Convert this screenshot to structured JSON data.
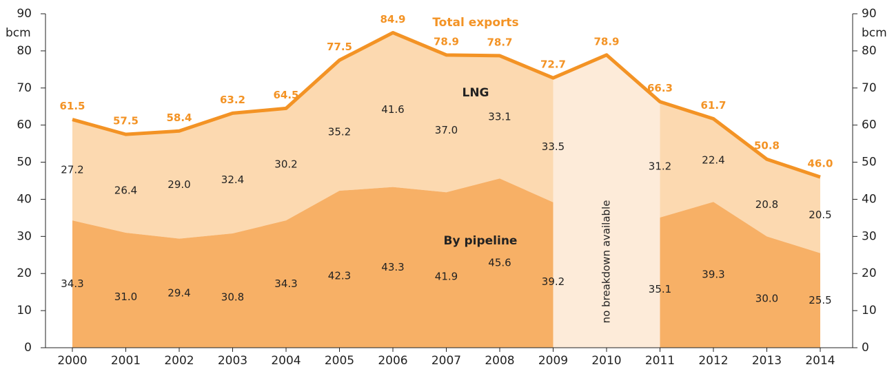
{
  "chart_data": {
    "type": "stacked_area",
    "ylabel": "bcm",
    "y2label": "bcm",
    "categories": [
      "2000",
      "2001",
      "2002",
      "2003",
      "2004",
      "2005",
      "2006",
      "2007",
      "2008",
      "2009",
      "2010",
      "2011",
      "2012",
      "2013",
      "2014"
    ],
    "series": [
      {
        "name": "By pipeline",
        "color": "#f7b066",
        "values": [
          34.3,
          31.0,
          29.4,
          30.8,
          34.3,
          42.3,
          43.3,
          41.9,
          45.6,
          39.2,
          null,
          35.1,
          39.3,
          30.0,
          25.5
        ],
        "value_labels": [
          "34.3",
          "31.0",
          "29.4",
          "30.8",
          "34.3",
          "42.3",
          "43.3",
          "41.9",
          "45.6",
          "39.2",
          null,
          "35.1",
          "39.3",
          "30.0",
          "25.5"
        ]
      },
      {
        "name": "LNG",
        "color": "#fcd9b0",
        "values": [
          27.2,
          26.4,
          29.0,
          32.4,
          30.2,
          35.2,
          41.6,
          37.0,
          33.1,
          33.5,
          null,
          31.2,
          22.4,
          20.8,
          20.5
        ],
        "value_labels": [
          "27.2",
          "26.4",
          "29.0",
          "32.4",
          "30.2",
          "35.2",
          "41.6",
          "37.0",
          "33.1",
          "33.5",
          null,
          "31.2",
          "22.4",
          "20.8",
          "20.5"
        ]
      },
      {
        "name": "Total exports",
        "color": "#f39325",
        "kind": "line",
        "values": [
          61.5,
          57.5,
          58.4,
          63.2,
          64.5,
          77.5,
          84.9,
          78.9,
          78.7,
          72.7,
          78.9,
          66.3,
          61.7,
          50.8,
          46.0
        ],
        "value_labels": [
          "61.5",
          "57.5",
          "58.4",
          "63.2",
          "64.5",
          "77.5",
          "84.9",
          "78.9",
          "78.7",
          "72.7",
          "78.9",
          "66.3",
          "61.7",
          "50.8",
          "46.0"
        ]
      }
    ],
    "annotation": "no breakdown available",
    "gap_color": "#fdebd9",
    "ylim": [
      0,
      90
    ],
    "yticks": [
      0,
      10,
      20,
      30,
      40,
      50,
      60,
      70,
      80,
      90
    ],
    "y2lim": [
      0,
      90
    ],
    "y2ticks": [
      0,
      10,
      20,
      30,
      40,
      50,
      60,
      70,
      80,
      90
    ]
  }
}
